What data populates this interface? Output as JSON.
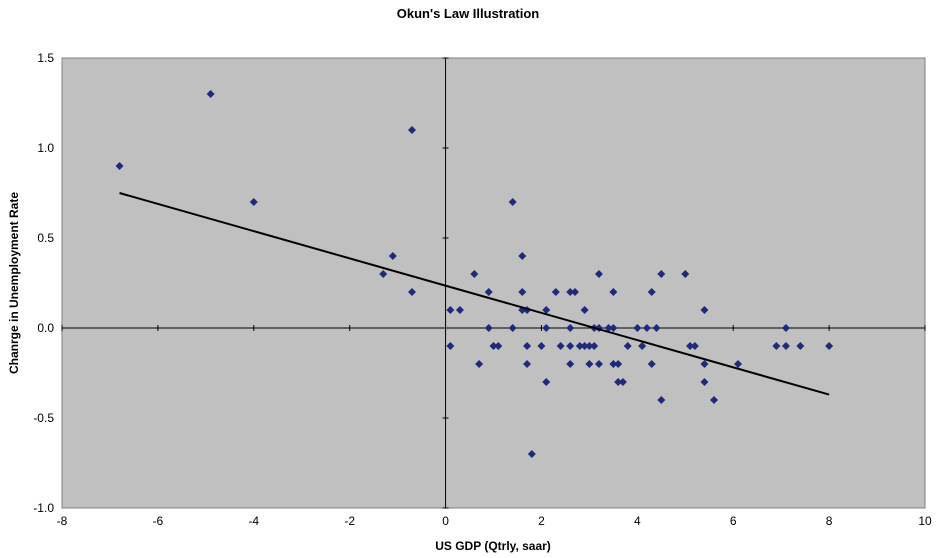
{
  "chart_data": {
    "type": "scatter",
    "title": "Okun's Law Illustration",
    "xlabel": "US GDP (Qtrly, saar)",
    "ylabel": "Chanrge in Unemployment Rate",
    "xlim": [
      -8,
      10
    ],
    "ylim": [
      -1.0,
      1.5
    ],
    "x_ticks": [
      -8,
      -6,
      -4,
      -2,
      0,
      2,
      4,
      6,
      8,
      10
    ],
    "x_tick_labels": [
      "-8",
      "-6",
      "-4",
      "-2",
      "0",
      "2",
      "4",
      "6",
      "8",
      "10"
    ],
    "y_ticks": [
      -1.0,
      -0.5,
      0.0,
      0.5,
      1.0,
      1.5
    ],
    "y_tick_labels": [
      "-1.0",
      "-0.5",
      "0.0",
      "0.5",
      "1.0",
      "1.5"
    ],
    "grid": false,
    "legend": "none",
    "colors": {
      "plot_background": "#c0c0c0",
      "marker": "#1f2a7a",
      "trendline": "#000000"
    },
    "series": [
      {
        "points": [
          [
            -6.8,
            0.9
          ],
          [
            -4.9,
            1.3
          ],
          [
            -4.0,
            0.7
          ],
          [
            -0.7,
            1.1
          ],
          [
            -1.1,
            0.4
          ],
          [
            -1.3,
            0.3
          ],
          [
            -0.7,
            0.2
          ],
          [
            0.1,
            0.1
          ],
          [
            0.3,
            0.1
          ],
          [
            0.1,
            -0.1
          ],
          [
            0.6,
            0.3
          ],
          [
            0.7,
            -0.2
          ],
          [
            0.9,
            0.2
          ],
          [
            0.9,
            0.0
          ],
          [
            1.0,
            -0.1
          ],
          [
            1.1,
            -0.1
          ],
          [
            1.4,
            0.7
          ],
          [
            1.4,
            0.0
          ],
          [
            1.6,
            0.4
          ],
          [
            1.6,
            0.2
          ],
          [
            1.6,
            0.1
          ],
          [
            1.7,
            0.1
          ],
          [
            1.7,
            -0.1
          ],
          [
            1.7,
            -0.2
          ],
          [
            1.8,
            -0.7
          ],
          [
            2.0,
            -0.1
          ],
          [
            2.1,
            0.1
          ],
          [
            2.1,
            0.0
          ],
          [
            2.1,
            -0.3
          ],
          [
            2.3,
            0.2
          ],
          [
            2.4,
            -0.1
          ],
          [
            2.6,
            0.2
          ],
          [
            2.7,
            0.2
          ],
          [
            2.6,
            0.0
          ],
          [
            2.6,
            -0.1
          ],
          [
            2.6,
            -0.2
          ],
          [
            2.8,
            -0.1
          ],
          [
            2.9,
            0.1
          ],
          [
            2.9,
            -0.1
          ],
          [
            3.0,
            -0.1
          ],
          [
            3.0,
            -0.2
          ],
          [
            3.1,
            -0.1
          ],
          [
            3.1,
            0.0
          ],
          [
            3.2,
            0.3
          ],
          [
            3.2,
            0.0
          ],
          [
            3.2,
            -0.2
          ],
          [
            3.4,
            0.0
          ],
          [
            3.5,
            0.2
          ],
          [
            3.5,
            0.0
          ],
          [
            3.5,
            -0.2
          ],
          [
            3.6,
            -0.2
          ],
          [
            3.6,
            -0.3
          ],
          [
            3.7,
            -0.3
          ],
          [
            3.8,
            -0.1
          ],
          [
            4.0,
            0.0
          ],
          [
            4.1,
            -0.1
          ],
          [
            4.2,
            0.0
          ],
          [
            4.3,
            0.2
          ],
          [
            4.3,
            -0.2
          ],
          [
            4.4,
            0.0
          ],
          [
            4.5,
            0.3
          ],
          [
            4.5,
            -0.4
          ],
          [
            5.0,
            0.3
          ],
          [
            5.1,
            -0.1
          ],
          [
            5.2,
            -0.1
          ],
          [
            5.4,
            0.1
          ],
          [
            5.4,
            -0.2
          ],
          [
            5.4,
            -0.3
          ],
          [
            5.6,
            -0.4
          ],
          [
            6.1,
            -0.2
          ],
          [
            6.9,
            -0.1
          ],
          [
            7.1,
            0.0
          ],
          [
            7.1,
            -0.1
          ],
          [
            7.4,
            -0.1
          ],
          [
            8.0,
            -0.1
          ]
        ]
      }
    ],
    "trendline": {
      "x_start": -6.8,
      "y_start": 0.75,
      "x_end": 8.0,
      "y_end": -0.37
    }
  }
}
